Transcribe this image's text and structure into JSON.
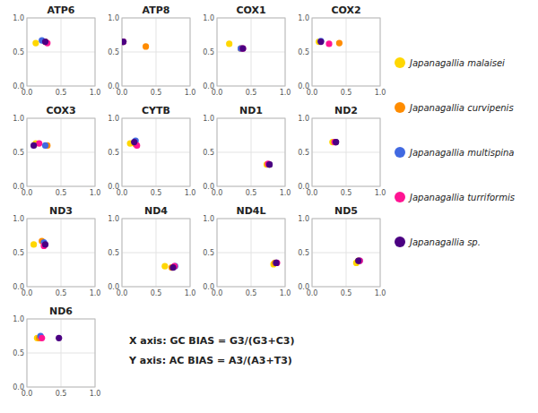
{
  "chart_data": [
    {
      "type": "scatter",
      "title": "ATP6",
      "series": [
        {
          "name": "Japanagallia malaisei",
          "color": "#FFD700",
          "x": [
            0.13
          ],
          "values": [
            0.63
          ]
        },
        {
          "name": "Japanagallia curvipenis",
          "color": "#FF8C00",
          "x": [
            0.27
          ],
          "values": [
            0.65
          ]
        },
        {
          "name": "Japanagallia multispina",
          "color": "#4169E1",
          "x": [
            0.22
          ],
          "values": [
            0.67
          ]
        },
        {
          "name": "Japanagallia turriformis",
          "color": "#FF1493",
          "x": [
            0.3
          ],
          "values": [
            0.63
          ]
        },
        {
          "name": "Japanagallia sp.",
          "color": "#4B0082",
          "x": [
            0.27
          ],
          "values": [
            0.65
          ]
        }
      ],
      "xlim": [
        0.0,
        1.0
      ],
      "ylim": [
        0.0,
        1.0
      ],
      "xticks": [
        {
          "value": 0.0,
          "label": "0.0"
        },
        0.5,
        {
          "value": 1.0,
          "label": "1.0"
        }
      ],
      "yticks": [
        {
          "value": 0.0,
          "label": "0.0"
        },
        0.5,
        {
          "value": 1.0,
          "label": "1.0"
        }
      ],
      "grid": true
    },
    {
      "type": "scatter",
      "title": "ATP8",
      "series": [
        {
          "name": "Japanagallia malaisei",
          "color": "#FFD700",
          "x": [
            0.02
          ],
          "values": [
            0.65
          ]
        },
        {
          "name": "Japanagallia curvipenis",
          "color": "#FF8C00",
          "x": [
            0.35
          ],
          "values": [
            0.58
          ]
        },
        {
          "name": "Japanagallia multispina",
          "color": "#4169E1",
          "x": [
            0.02
          ],
          "values": [
            0.65
          ]
        },
        {
          "name": "Japanagallia turriformis",
          "color": "#FF1493",
          "x": [
            0.02
          ],
          "values": [
            0.65
          ]
        },
        {
          "name": "Japanagallia sp.",
          "color": "#4B0082",
          "x": [
            0.02
          ],
          "values": [
            0.65
          ]
        }
      ],
      "xlim": [
        0.0,
        1.0
      ],
      "ylim": [
        0.0,
        1.0
      ],
      "xticks": [
        {
          "value": 0.0,
          "label": "0.0"
        },
        0.5,
        {
          "value": 1.0,
          "label": "1.0"
        }
      ],
      "yticks": [
        {
          "value": 0.0,
          "label": "0.0"
        },
        0.5,
        {
          "value": 1.0,
          "label": "1.0"
        }
      ],
      "grid": true
    },
    {
      "type": "scatter",
      "title": "COX1",
      "series": [
        {
          "name": "Japanagallia malaisei",
          "color": "#FFD700",
          "x": [
            0.18
          ],
          "values": [
            0.62
          ]
        },
        {
          "name": "Japanagallia curvipenis",
          "color": "#FF8C00",
          "x": [
            0.35
          ],
          "values": [
            0.55
          ]
        },
        {
          "name": "Japanagallia multispina",
          "color": "#4169E1",
          "x": [
            0.35
          ],
          "values": [
            0.55
          ]
        },
        {
          "name": "Japanagallia turriformis",
          "color": "#FF1493",
          "x": [
            0.38
          ],
          "values": [
            0.55
          ]
        },
        {
          "name": "Japanagallia sp.",
          "color": "#4B0082",
          "x": [
            0.38
          ],
          "values": [
            0.55
          ]
        }
      ],
      "xlim": [
        0.0,
        1.0
      ],
      "ylim": [
        0.0,
        1.0
      ],
      "xticks": [
        {
          "value": 0.0,
          "label": "0.0"
        },
        0.5,
        {
          "value": 1.0,
          "label": "1.0"
        }
      ],
      "yticks": [
        {
          "value": 0.0,
          "label": "0.0"
        },
        0.5,
        {
          "value": 1.0,
          "label": "1.0"
        }
      ],
      "grid": true
    },
    {
      "type": "scatter",
      "title": "COX2",
      "series": [
        {
          "name": "Japanagallia malaisei",
          "color": "#FFD700",
          "x": [
            0.1
          ],
          "values": [
            0.65
          ]
        },
        {
          "name": "Japanagallia curvipenis",
          "color": "#FF8C00",
          "x": [
            0.4
          ],
          "values": [
            0.63
          ]
        },
        {
          "name": "Japanagallia multispina",
          "color": "#4169E1",
          "x": [
            0.13
          ],
          "values": [
            0.66
          ]
        },
        {
          "name": "Japanagallia turriformis",
          "color": "#FF1493",
          "x": [
            0.25
          ],
          "values": [
            0.62
          ]
        },
        {
          "name": "Japanagallia sp.",
          "color": "#4B0082",
          "x": [
            0.13
          ],
          "values": [
            0.65
          ]
        }
      ],
      "xlim": [
        0.0,
        1.0
      ],
      "ylim": [
        0.0,
        1.0
      ],
      "xticks": [
        {
          "value": 0.0,
          "label": "0.0"
        },
        0.5,
        {
          "value": 1.0,
          "label": "1.0"
        }
      ],
      "yticks": [
        {
          "value": 0.0,
          "label": "0.0"
        },
        0.5,
        {
          "value": 1.0,
          "label": "1.0"
        }
      ],
      "grid": true
    },
    {
      "type": "scatter",
      "title": "COX3",
      "series": [
        {
          "name": "Japanagallia malaisei",
          "color": "#FFD700",
          "x": [
            0.13
          ],
          "values": [
            0.63
          ]
        },
        {
          "name": "Japanagallia curvipenis",
          "color": "#FF8C00",
          "x": [
            0.3
          ],
          "values": [
            0.6
          ]
        },
        {
          "name": "Japanagallia multispina",
          "color": "#4169E1",
          "x": [
            0.27
          ],
          "values": [
            0.6
          ]
        },
        {
          "name": "Japanagallia turriformis",
          "color": "#FF1493",
          "x": [
            0.18
          ],
          "values": [
            0.63
          ]
        },
        {
          "name": "Japanagallia sp.",
          "color": "#4B0082",
          "x": [
            0.1
          ],
          "values": [
            0.6
          ]
        }
      ],
      "xlim": [
        0.0,
        1.0
      ],
      "ylim": [
        0.0,
        1.0
      ],
      "xticks": [
        {
          "value": 0.0,
          "label": "0.0"
        },
        0.5,
        {
          "value": 1.0,
          "label": "1.0"
        }
      ],
      "yticks": [
        {
          "value": 0.0,
          "label": "0.0"
        },
        0.5,
        {
          "value": 1.0,
          "label": "1.0"
        }
      ],
      "grid": true
    },
    {
      "type": "scatter",
      "title": "CYTB",
      "series": [
        {
          "name": "Japanagallia malaisei",
          "color": "#FFD700",
          "x": [
            0.12
          ],
          "values": [
            0.63
          ]
        },
        {
          "name": "Japanagallia curvipenis",
          "color": "#FF8C00",
          "x": [
            0.2
          ],
          "values": [
            0.62
          ]
        },
        {
          "name": "Japanagallia multispina",
          "color": "#4169E1",
          "x": [
            0.2
          ],
          "values": [
            0.67
          ]
        },
        {
          "name": "Japanagallia turriformis",
          "color": "#FF1493",
          "x": [
            0.22
          ],
          "values": [
            0.6
          ]
        },
        {
          "name": "Japanagallia sp.",
          "color": "#4B0082",
          "x": [
            0.18
          ],
          "values": [
            0.65
          ]
        }
      ],
      "xlim": [
        0.0,
        1.0
      ],
      "ylim": [
        0.0,
        1.0
      ],
      "xticks": [
        {
          "value": 0.0,
          "label": "0.0"
        },
        0.5,
        {
          "value": 1.0,
          "label": "1.0"
        }
      ],
      "yticks": [
        {
          "value": 0.0,
          "label": "0.0"
        },
        0.5,
        {
          "value": 1.0,
          "label": "1.0"
        }
      ],
      "grid": true
    },
    {
      "type": "scatter",
      "title": "ND1",
      "series": [
        {
          "name": "Japanagallia malaisei",
          "color": "#FFD700",
          "x": [
            0.73
          ],
          "values": [
            0.32
          ]
        },
        {
          "name": "Japanagallia curvipenis",
          "color": "#FF8C00",
          "x": [
            0.77
          ],
          "values": [
            0.32
          ]
        },
        {
          "name": "Japanagallia multispina",
          "color": "#4169E1",
          "x": [
            0.77
          ],
          "values": [
            0.32
          ]
        },
        {
          "name": "Japanagallia turriformis",
          "color": "#FF1493",
          "x": [
            0.75
          ],
          "values": [
            0.33
          ]
        },
        {
          "name": "Japanagallia sp.",
          "color": "#4B0082",
          "x": [
            0.77
          ],
          "values": [
            0.32
          ]
        }
      ],
      "xlim": [
        0.0,
        1.0
      ],
      "ylim": [
        0.0,
        1.0
      ],
      "xticks": [
        {
          "value": 0.0,
          "label": "0.0"
        },
        0.5,
        {
          "value": 1.0,
          "label": "1.0"
        }
      ],
      "yticks": [
        {
          "value": 0.0,
          "label": "0.0"
        },
        0.5,
        {
          "value": 1.0,
          "label": "1.0"
        }
      ],
      "grid": true
    },
    {
      "type": "scatter",
      "title": "ND2",
      "series": [
        {
          "name": "Japanagallia malaisei",
          "color": "#FFD700",
          "x": [
            0.3
          ],
          "values": [
            0.65
          ]
        },
        {
          "name": "Japanagallia curvipenis",
          "color": "#FF8C00",
          "x": [
            0.35
          ],
          "values": [
            0.65
          ]
        },
        {
          "name": "Japanagallia multispina",
          "color": "#4169E1",
          "x": [
            0.35
          ],
          "values": [
            0.65
          ]
        },
        {
          "name": "Japanagallia turriformis",
          "color": "#FF1493",
          "x": [
            0.33
          ],
          "values": [
            0.65
          ]
        },
        {
          "name": "Japanagallia sp.",
          "color": "#4B0082",
          "x": [
            0.35
          ],
          "values": [
            0.65
          ]
        }
      ],
      "xlim": [
        0.0,
        1.0
      ],
      "ylim": [
        0.0,
        1.0
      ],
      "xticks": [
        {
          "value": 0.0,
          "label": "0.0"
        },
        0.5,
        {
          "value": 1.0,
          "label": "1.0"
        }
      ],
      "yticks": [
        {
          "value": 0.0,
          "label": "0.0"
        },
        0.5,
        {
          "value": 1.0,
          "label": "1.0"
        }
      ],
      "grid": true
    },
    {
      "type": "scatter",
      "title": "ND3",
      "series": [
        {
          "name": "Japanagallia malaisei",
          "color": "#FFD700",
          "x": [
            0.1
          ],
          "values": [
            0.62
          ]
        },
        {
          "name": "Japanagallia curvipenis",
          "color": "#FF8C00",
          "x": [
            0.22
          ],
          "values": [
            0.67
          ]
        },
        {
          "name": "Japanagallia multispina",
          "color": "#4169E1",
          "x": [
            0.25
          ],
          "values": [
            0.65
          ]
        },
        {
          "name": "Japanagallia turriformis",
          "color": "#FF1493",
          "x": [
            0.25
          ],
          "values": [
            0.6
          ]
        },
        {
          "name": "Japanagallia sp.",
          "color": "#4B0082",
          "x": [
            0.27
          ],
          "values": [
            0.62
          ]
        }
      ],
      "xlim": [
        0.0,
        1.0
      ],
      "ylim": [
        0.0,
        1.0
      ],
      "xticks": [
        {
          "value": 0.0,
          "label": "0.0"
        },
        0.5,
        {
          "value": 1.0,
          "label": "1.0"
        }
      ],
      "yticks": [
        {
          "value": 0.0,
          "label": "0.0"
        },
        0.5,
        {
          "value": 1.0,
          "label": "1.0"
        }
      ],
      "grid": true
    },
    {
      "type": "scatter",
      "title": "ND4",
      "series": [
        {
          "name": "Japanagallia malaisei",
          "color": "#FFD700",
          "x": [
            0.63
          ],
          "values": [
            0.3
          ]
        },
        {
          "name": "Japanagallia curvipenis",
          "color": "#FF8C00",
          "x": [
            0.73
          ],
          "values": [
            0.28
          ]
        },
        {
          "name": "Japanagallia multispina",
          "color": "#4169E1",
          "x": [
            0.78
          ],
          "values": [
            0.3
          ]
        },
        {
          "name": "Japanagallia turriformis",
          "color": "#FF1493",
          "x": [
            0.77
          ],
          "values": [
            0.3
          ]
        },
        {
          "name": "Japanagallia sp.",
          "color": "#4B0082",
          "x": [
            0.75
          ],
          "values": [
            0.28
          ]
        }
      ],
      "xlim": [
        0.0,
        1.0
      ],
      "ylim": [
        0.0,
        1.0
      ],
      "xticks": [
        {
          "value": 0.0,
          "label": "0.0"
        },
        0.5,
        {
          "value": 1.0,
          "label": "1.0"
        }
      ],
      "yticks": [
        {
          "value": 0.0,
          "label": "0.0"
        },
        0.5,
        {
          "value": 1.0,
          "label": "1.0"
        }
      ],
      "grid": true
    },
    {
      "type": "scatter",
      "title": "ND4L",
      "series": [
        {
          "name": "Japanagallia malaisei",
          "color": "#FFD700",
          "x": [
            0.83
          ],
          "values": [
            0.33
          ]
        },
        {
          "name": "Japanagallia curvipenis",
          "color": "#FF8C00",
          "x": [
            0.85
          ],
          "values": [
            0.35
          ]
        },
        {
          "name": "Japanagallia multispina",
          "color": "#4169E1",
          "x": [
            0.87
          ],
          "values": [
            0.35
          ]
        },
        {
          "name": "Japanagallia turriformis",
          "color": "#FF1493",
          "x": [
            0.88
          ],
          "values": [
            0.35
          ]
        },
        {
          "name": "Japanagallia sp.",
          "color": "#4B0082",
          "x": [
            0.87
          ],
          "values": [
            0.35
          ]
        }
      ],
      "xlim": [
        0.0,
        1.0
      ],
      "ylim": [
        0.0,
        1.0
      ],
      "xticks": [
        {
          "value": 0.0,
          "label": "0.0"
        },
        0.5,
        {
          "value": 1.0,
          "label": "1.0"
        }
      ],
      "yticks": [
        {
          "value": 0.0,
          "label": "0.0"
        },
        0.5,
        {
          "value": 1.0,
          "label": "1.0"
        }
      ],
      "grid": true
    },
    {
      "type": "scatter",
      "title": "ND5",
      "series": [
        {
          "name": "Japanagallia malaisei",
          "color": "#FFD700",
          "x": [
            0.65
          ],
          "values": [
            0.35
          ]
        },
        {
          "name": "Japanagallia curvipenis",
          "color": "#FF8C00",
          "x": [
            0.68
          ],
          "values": [
            0.38
          ]
        },
        {
          "name": "Japanagallia multispina",
          "color": "#4169E1",
          "x": [
            0.7
          ],
          "values": [
            0.38
          ]
        },
        {
          "name": "Japanagallia turriformis",
          "color": "#FF1493",
          "x": [
            0.7
          ],
          "values": [
            0.38
          ]
        },
        {
          "name": "Japanagallia sp.",
          "color": "#4B0082",
          "x": [
            0.68
          ],
          "values": [
            0.38
          ]
        }
      ],
      "xlim": [
        0.0,
        1.0
      ],
      "ylim": [
        0.0,
        1.0
      ],
      "xticks": [
        {
          "value": 0.0,
          "label": "0.0"
        },
        0.5,
        {
          "value": 1.0,
          "label": "1.0"
        }
      ],
      "yticks": [
        {
          "value": 0.0,
          "label": "0.0"
        },
        0.5,
        {
          "value": 1.0,
          "label": "1.0"
        }
      ],
      "grid": true
    },
    {
      "type": "scatter",
      "title": "ND6",
      "series": [
        {
          "name": "Japanagallia malaisei",
          "color": "#FFD700",
          "x": [
            0.15
          ],
          "values": [
            0.72
          ]
        },
        {
          "name": "Japanagallia curvipenis",
          "color": "#FF8C00",
          "x": [
            0.18
          ],
          "values": [
            0.72
          ]
        },
        {
          "name": "Japanagallia multispina",
          "color": "#4169E1",
          "x": [
            0.2
          ],
          "values": [
            0.75
          ]
        },
        {
          "name": "Japanagallia turriformis",
          "color": "#FF1493",
          "x": [
            0.22
          ],
          "values": [
            0.72
          ]
        },
        {
          "name": "Japanagallia sp.",
          "color": "#4B0082",
          "x": [
            0.47
          ],
          "values": [
            0.72
          ]
        }
      ],
      "xlim": [
        0.0,
        1.0
      ],
      "ylim": [
        0.0,
        1.0
      ],
      "xticks": [
        {
          "value": 0.0,
          "label": "0.0"
        },
        0.5,
        {
          "value": 1.0,
          "label": "1.0"
        }
      ],
      "yticks": [
        {
          "value": 0.0,
          "label": "0.0"
        },
        0.5,
        {
          "value": 1.0,
          "label": "1.0"
        }
      ],
      "grid": true,
      "annotations": [
        "X axis: GC BIAS = G3/(G3+C3)",
        "Y axis: AC BIAS = A3/(A3+T3)"
      ]
    }
  ]
}
